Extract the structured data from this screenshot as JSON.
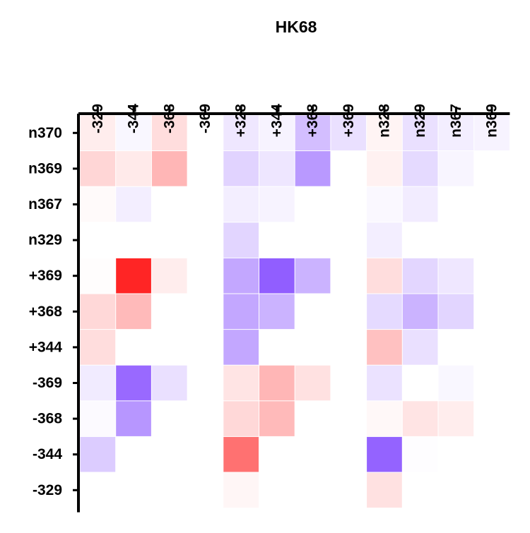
{
  "chart_data": {
    "type": "heatmap",
    "title": "HK68",
    "xlabel": "",
    "ylabel": "",
    "x_categories": [
      "-329",
      "-344",
      "-368",
      "-369",
      "+328",
      "+344",
      "+368",
      "+369",
      "n328",
      "n329",
      "n367",
      "n369"
    ],
    "y_categories": [
      "n370",
      "n369",
      "n367",
      "n329",
      "+369",
      "+368",
      "+344",
      "-369",
      "-368",
      "-344",
      "-329"
    ],
    "color_scale": {
      "negative": "#ff1a1a",
      "zero": "#ffffff",
      "positive": "#8b55ff",
      "range": [
        -1,
        1
      ]
    },
    "values": [
      [
        -0.08,
        0.05,
        -0.15,
        null,
        0.14,
        0.07,
        0.38,
        0.18,
        -0.05,
        0.18,
        0.1,
        0.07
      ],
      [
        -0.18,
        -0.09,
        -0.32,
        null,
        0.26,
        0.15,
        0.6,
        null,
        -0.06,
        0.22,
        0.06,
        null
      ],
      [
        -0.02,
        0.1,
        null,
        null,
        0.1,
        0.07,
        null,
        null,
        0.04,
        0.11,
        null,
        null
      ],
      [
        null,
        null,
        null,
        null,
        0.25,
        null,
        null,
        null,
        0.1,
        null,
        null,
        null
      ],
      [
        -0.01,
        -0.95,
        -0.08,
        null,
        0.52,
        0.95,
        0.45,
        null,
        -0.15,
        0.24,
        0.14,
        null
      ],
      [
        -0.17,
        -0.3,
        null,
        null,
        0.52,
        0.45,
        null,
        null,
        0.22,
        0.45,
        0.25,
        null
      ],
      [
        -0.15,
        null,
        null,
        null,
        0.52,
        null,
        null,
        null,
        -0.27,
        0.18,
        null,
        null
      ],
      [
        0.12,
        0.88,
        0.18,
        null,
        -0.12,
        -0.32,
        -0.13,
        null,
        0.17,
        null,
        0.05,
        null
      ],
      [
        0.03,
        0.62,
        null,
        null,
        -0.17,
        -0.3,
        null,
        null,
        -0.03,
        -0.12,
        -0.08,
        null
      ],
      [
        0.3,
        null,
        null,
        null,
        -0.62,
        null,
        null,
        null,
        0.92,
        0.01,
        null,
        null
      ],
      [
        null,
        null,
        null,
        null,
        -0.04,
        null,
        null,
        null,
        -0.13,
        null,
        null,
        null
      ]
    ]
  }
}
